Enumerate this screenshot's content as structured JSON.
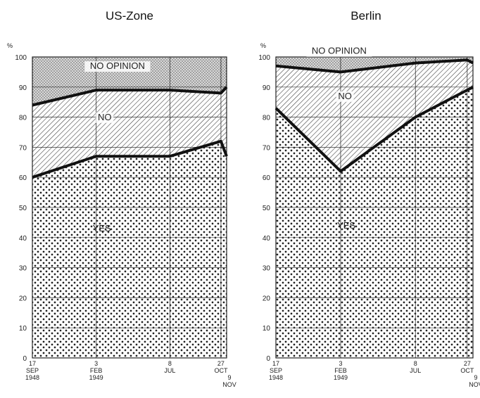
{
  "chart_data": [
    {
      "type": "area",
      "title": "US-Zone",
      "ylabel": "%",
      "ylim": [
        0,
        100
      ],
      "yticks": [
        0,
        10,
        20,
        30,
        40,
        50,
        60,
        70,
        80,
        90,
        100
      ],
      "x": [
        0,
        4.5,
        9.7,
        13.3,
        13.7
      ],
      "x_ticks": [
        {
          "pos": 0,
          "lines": [
            "17",
            "SEP",
            "1948"
          ]
        },
        {
          "pos": 4.5,
          "lines": [
            "3",
            "FEB",
            "1949"
          ]
        },
        {
          "pos": 9.7,
          "lines": [
            "8",
            "JUL"
          ]
        },
        {
          "pos": 13.3,
          "lines": [
            "27",
            "OCT"
          ]
        },
        {
          "pos": 13.7,
          "lines": [
            "9",
            "NOV"
          ]
        }
      ],
      "series": [
        {
          "name": "YES",
          "values": [
            60,
            67,
            67,
            72,
            67
          ]
        },
        {
          "name": "NO",
          "values": [
            24,
            22,
            22,
            16,
            23
          ]
        },
        {
          "name": "NO OPINION",
          "values": [
            16,
            11,
            11,
            12,
            10
          ]
        }
      ],
      "grid": true
    },
    {
      "type": "area",
      "title": "Berlin",
      "ylabel": "%",
      "ylim": [
        0,
        100
      ],
      "yticks": [
        0,
        10,
        20,
        30,
        40,
        50,
        60,
        70,
        80,
        90,
        100
      ],
      "x": [
        0,
        4.5,
        9.7,
        13.3,
        13.7
      ],
      "x_ticks": [
        {
          "pos": 0,
          "lines": [
            "17",
            "SEP",
            "1948"
          ]
        },
        {
          "pos": 4.5,
          "lines": [
            "3",
            "FEB",
            "1949"
          ]
        },
        {
          "pos": 9.7,
          "lines": [
            "8",
            "JUL"
          ]
        },
        {
          "pos": 13.3,
          "lines": [
            "27",
            "OCT"
          ]
        },
        {
          "pos": 13.7,
          "lines": [
            "9",
            "NOV"
          ]
        }
      ],
      "series": [
        {
          "name": "YES",
          "values": [
            83,
            62,
            80,
            89,
            90
          ]
        },
        {
          "name": "NO",
          "values": [
            14,
            33,
            18,
            10,
            8
          ]
        },
        {
          "name": "NO OPINION",
          "values": [
            3,
            5,
            2,
            1,
            2
          ]
        }
      ],
      "grid": true
    }
  ]
}
